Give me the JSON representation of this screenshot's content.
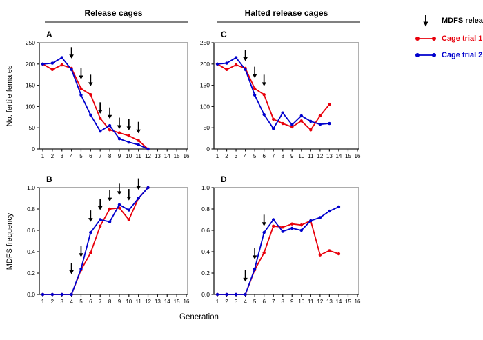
{
  "figure": {
    "column_headers": [
      {
        "label": "Release cages"
      },
      {
        "label": "Halted release cages"
      }
    ],
    "x_axis_label": "Generation",
    "y_axis_labels": {
      "top_row": "No. fertile females",
      "bottom_row": "MDFS frequency"
    },
    "legend": {
      "items": [
        {
          "label": "MDFS release",
          "marker": "arrow-down-icon",
          "color": "#000000"
        },
        {
          "label": "Cage trial 1",
          "marker": "line-dot",
          "color": "#e8000b"
        },
        {
          "label": "Cage trial 2",
          "marker": "line-dot",
          "color": "#0000cd"
        }
      ]
    }
  },
  "colors": {
    "trial1_red": "#e8000b",
    "trial2_blue": "#0000cd",
    "arrow_black": "#000000",
    "header_rule_gray": "#808080",
    "spine_dark": "#1a1a1a",
    "spine_gray": "#909090"
  },
  "chart_data": [
    {
      "id": "A",
      "type": "line",
      "column": "Release cages",
      "ylabel": "No. fertile females",
      "xlabel": "Generation",
      "xlim": [
        1,
        16
      ],
      "xticks": [
        1,
        2,
        3,
        4,
        5,
        6,
        7,
        8,
        9,
        10,
        11,
        12,
        13,
        14,
        15,
        16
      ],
      "ylim": [
        0,
        250
      ],
      "yticks": [
        0,
        50,
        100,
        150,
        200,
        250
      ],
      "ytick_decimals": 0,
      "series": [
        {
          "name": "Cage trial 1",
          "color": "#e8000b",
          "x": [
            1,
            2,
            3,
            4,
            5,
            6,
            7,
            8,
            9,
            10,
            11,
            12
          ],
          "values": [
            200,
            187,
            198,
            190,
            142,
            128,
            72,
            45,
            38,
            31,
            20,
            0
          ]
        },
        {
          "name": "Cage trial 2",
          "color": "#0000cd",
          "x": [
            1,
            2,
            3,
            4,
            5,
            6,
            7,
            8,
            9,
            10,
            11,
            12
          ],
          "values": [
            200,
            202,
            215,
            187,
            127,
            80,
            42,
            55,
            24,
            16,
            10,
            0
          ]
        }
      ],
      "release_arrows": [
        {
          "x": 4,
          "tip": 213
        },
        {
          "x": 5,
          "tip": 164
        },
        {
          "x": 6,
          "tip": 148
        },
        {
          "x": 7,
          "tip": 83
        },
        {
          "x": 8,
          "tip": 71
        },
        {
          "x": 9,
          "tip": 47
        },
        {
          "x": 10,
          "tip": 44
        },
        {
          "x": 11,
          "tip": 37
        }
      ]
    },
    {
      "id": "C",
      "type": "line",
      "column": "Halted release cages",
      "ylabel": "No. fertile females",
      "xlabel": "Generation",
      "xlim": [
        1,
        16
      ],
      "xticks": [
        1,
        2,
        3,
        4,
        5,
        6,
        7,
        8,
        9,
        10,
        11,
        12,
        13,
        14,
        15,
        16
      ],
      "ylim": [
        0,
        250
      ],
      "yticks": [
        0,
        50,
        100,
        150,
        200,
        250
      ],
      "ytick_decimals": 0,
      "series": [
        {
          "name": "Cage trial 1",
          "color": "#e8000b",
          "x": [
            1,
            2,
            3,
            4,
            5,
            6,
            7,
            8,
            9,
            10,
            11,
            12,
            13
          ],
          "values": [
            200,
            187,
            198,
            190,
            142,
            128,
            70,
            60,
            52,
            66,
            45,
            78,
            105
          ]
        },
        {
          "name": "Cage trial 2",
          "color": "#0000cd",
          "x": [
            1,
            2,
            3,
            4,
            5,
            6,
            7,
            8,
            9,
            10,
            11,
            12,
            13
          ],
          "values": [
            200,
            202,
            215,
            187,
            127,
            81,
            48,
            85,
            57,
            78,
            65,
            58,
            60
          ]
        }
      ],
      "release_arrows": [
        {
          "x": 4,
          "tip": 207
        },
        {
          "x": 5,
          "tip": 167
        },
        {
          "x": 6,
          "tip": 148
        }
      ]
    },
    {
      "id": "B",
      "type": "line",
      "column": "Release cages",
      "ylabel": "MDFS frequency",
      "xlabel": "Generation",
      "xlim": [
        1,
        16
      ],
      "xticks": [
        1,
        2,
        3,
        4,
        5,
        6,
        7,
        8,
        9,
        10,
        11,
        12,
        13,
        14,
        15,
        16
      ],
      "ylim": [
        0,
        1.0
      ],
      "yticks": [
        0,
        0.2,
        0.4,
        0.6,
        0.8,
        1.0
      ],
      "ytick_decimals": 1,
      "series": [
        {
          "name": "Cage trial 1",
          "color": "#e8000b",
          "x": [
            1,
            2,
            3,
            4,
            5,
            6,
            7,
            8,
            9,
            10,
            11,
            12
          ],
          "values": [
            0,
            0,
            0,
            0,
            0.23,
            0.39,
            0.64,
            0.8,
            0.81,
            0.7,
            0.9,
            1.0
          ]
        },
        {
          "name": "Cage trial 2",
          "color": "#0000cd",
          "x": [
            1,
            2,
            3,
            4,
            5,
            6,
            7,
            8,
            9,
            10,
            11,
            12
          ],
          "values": [
            0,
            0,
            0,
            0,
            0.24,
            0.58,
            0.7,
            0.68,
            0.84,
            0.79,
            0.9,
            1.0
          ]
        }
      ],
      "release_arrows": [
        {
          "x": 4,
          "tip": 0.19
        },
        {
          "x": 5,
          "tip": 0.35
        },
        {
          "x": 6,
          "tip": 0.68
        },
        {
          "x": 7,
          "tip": 0.79
        },
        {
          "x": 8,
          "tip": 0.87
        },
        {
          "x": 9,
          "tip": 0.93
        },
        {
          "x": 10,
          "tip": 0.88
        },
        {
          "x": 11,
          "tip": 0.98
        }
      ]
    },
    {
      "id": "D",
      "type": "line",
      "column": "Halted release cages",
      "ylabel": "MDFS frequency",
      "xlabel": "Generation",
      "xlim": [
        1,
        16
      ],
      "xticks": [
        1,
        2,
        3,
        4,
        5,
        6,
        7,
        8,
        9,
        10,
        11,
        12,
        13,
        14,
        15,
        16
      ],
      "ylim": [
        0,
        1.0
      ],
      "yticks": [
        0,
        0.2,
        0.4,
        0.6,
        0.8,
        1.0
      ],
      "ytick_decimals": 1,
      "series": [
        {
          "name": "Cage trial 1",
          "color": "#e8000b",
          "x": [
            1,
            2,
            3,
            4,
            5,
            6,
            7,
            8,
            9,
            10,
            11,
            12,
            13,
            14
          ],
          "values": [
            0,
            0,
            0,
            0,
            0.23,
            0.39,
            0.64,
            0.63,
            0.66,
            0.65,
            0.69,
            0.37,
            0.41,
            0.38
          ]
        },
        {
          "name": "Cage trial 2",
          "color": "#0000cd",
          "x": [
            1,
            2,
            3,
            4,
            5,
            6,
            7,
            8,
            9,
            10,
            11,
            12,
            13,
            14
          ],
          "values": [
            0,
            0,
            0,
            0,
            0.24,
            0.58,
            0.7,
            0.59,
            0.62,
            0.6,
            0.69,
            0.72,
            0.78,
            0.82
          ]
        }
      ],
      "release_arrows": [
        {
          "x": 4,
          "tip": 0.12
        },
        {
          "x": 5,
          "tip": 0.33
        },
        {
          "x": 6,
          "tip": 0.64
        }
      ]
    }
  ]
}
